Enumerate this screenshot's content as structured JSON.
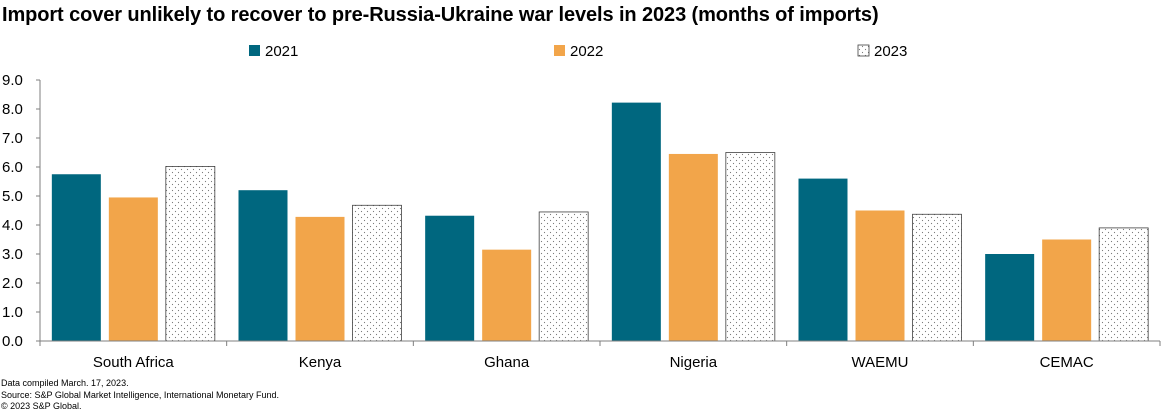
{
  "chart_data": {
    "type": "bar",
    "title": "Import cover unlikely  to recover to pre-Russia-Ukraine  war levels in 2023 (months of imports)",
    "categories": [
      "South Africa",
      "Kenya",
      "Ghana",
      "Nigeria",
      "WAEMU",
      "CEMAC"
    ],
    "series": [
      {
        "name": "2021",
        "color": "#00677f",
        "pattern": "solid",
        "values": [
          5.75,
          5.2,
          4.32,
          8.22,
          5.6,
          3.0
        ]
      },
      {
        "name": "2022",
        "color": "#f2a54a",
        "pattern": "solid",
        "values": [
          4.95,
          4.28,
          3.15,
          6.45,
          4.5,
          3.5
        ]
      },
      {
        "name": "2023",
        "color": "#ffffff",
        "pattern": "dotted",
        "values": [
          6.02,
          4.68,
          4.45,
          6.5,
          4.37,
          3.9
        ]
      }
    ],
    "yticks": [
      "0.0",
      "1.0",
      "2.0",
      "3.0",
      "4.0",
      "5.0",
      "6.0",
      "7.0",
      "8.0",
      "9.0"
    ],
    "ylim": [
      0,
      9
    ],
    "xlabel": "",
    "ylabel": "",
    "legend_position": "top-center",
    "grid": false
  },
  "footer": {
    "line1": "Data compiled March. 17, 2023.",
    "line2": "Source: S&P Global Market Intelligence, International Monetary Fund.",
    "line3": "© 2023 S&P Global."
  }
}
